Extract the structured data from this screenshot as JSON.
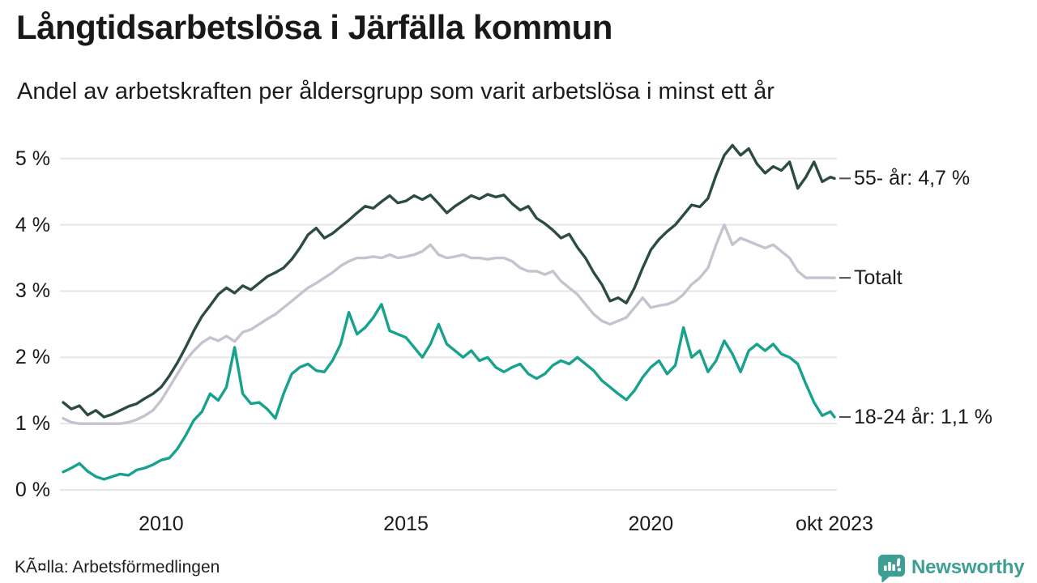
{
  "chart_data": {
    "type": "line",
    "title": "Långtidsarbetslösa i Järfälla kommun",
    "subtitle": "Andel av arbetskraften per åldersgrupp som varit arbetslösa i minst ett år",
    "x_range": [
      "jan 2008",
      "okt 2023"
    ],
    "x_unit": "month",
    "total_months": 189,
    "step_months": 2,
    "ylim": [
      0,
      5
    ],
    "grid": "horizontal",
    "legend_position": "right-edge-labels",
    "yticks": [
      {
        "value": 0,
        "label": "0 %"
      },
      {
        "value": 1,
        "label": "1 %"
      },
      {
        "value": 2,
        "label": "2 %"
      },
      {
        "value": 3,
        "label": "3 %"
      },
      {
        "value": 4,
        "label": "4 %"
      },
      {
        "value": 5,
        "label": "5 %"
      }
    ],
    "xticks": [
      {
        "month": 24,
        "label": "2010"
      },
      {
        "month": 84,
        "label": "2015"
      },
      {
        "month": 144,
        "label": "2020"
      },
      {
        "month": 189,
        "label": "okt 2023"
      }
    ],
    "series": [
      {
        "name": "Totalt",
        "end_label": "Totalt",
        "end_value": 3.2,
        "color_key": "gray",
        "values": [
          1.08,
          1.02,
          1.0,
          1.0,
          1.0,
          1.0,
          1.0,
          1.0,
          1.02,
          1.06,
          1.12,
          1.2,
          1.35,
          1.55,
          1.75,
          1.95,
          2.1,
          2.22,
          2.3,
          2.25,
          2.32,
          2.24,
          2.38,
          2.42,
          2.5,
          2.58,
          2.65,
          2.75,
          2.85,
          2.95,
          3.05,
          3.12,
          3.2,
          3.28,
          3.38,
          3.45,
          3.5,
          3.5,
          3.52,
          3.5,
          3.55,
          3.5,
          3.52,
          3.55,
          3.6,
          3.7,
          3.55,
          3.5,
          3.52,
          3.55,
          3.5,
          3.5,
          3.48,
          3.5,
          3.5,
          3.45,
          3.35,
          3.3,
          3.3,
          3.25,
          3.3,
          3.15,
          3.05,
          2.95,
          2.8,
          2.65,
          2.55,
          2.5,
          2.55,
          2.6,
          2.75,
          2.9,
          2.75,
          2.78,
          2.8,
          2.85,
          2.95,
          3.1,
          3.2,
          3.35,
          3.7,
          4.0,
          3.7,
          3.8,
          3.75,
          3.7,
          3.65,
          3.7,
          3.6,
          3.5,
          3.3,
          3.2,
          3.2,
          3.2,
          3.2,
          3.2
        ]
      },
      {
        "name": "55- år",
        "end_label": "55- år: 4,7 %",
        "end_value": 4.7,
        "color_key": "green",
        "values": [
          1.32,
          1.22,
          1.27,
          1.13,
          1.2,
          1.1,
          1.14,
          1.2,
          1.26,
          1.3,
          1.38,
          1.45,
          1.55,
          1.72,
          1.92,
          2.15,
          2.4,
          2.62,
          2.78,
          2.95,
          3.05,
          2.97,
          3.08,
          3.02,
          3.12,
          3.22,
          3.28,
          3.35,
          3.48,
          3.65,
          3.85,
          3.95,
          3.8,
          3.87,
          3.97,
          4.07,
          4.18,
          4.28,
          4.25,
          4.35,
          4.44,
          4.33,
          4.36,
          4.44,
          4.38,
          4.45,
          4.32,
          4.18,
          4.28,
          4.36,
          4.44,
          4.39,
          4.46,
          4.42,
          4.45,
          4.32,
          4.22,
          4.28,
          4.1,
          4.02,
          3.92,
          3.8,
          3.86,
          3.66,
          3.5,
          3.28,
          3.1,
          2.85,
          2.9,
          2.82,
          3.05,
          3.35,
          3.62,
          3.78,
          3.9,
          4.0,
          4.15,
          4.3,
          4.27,
          4.4,
          4.75,
          5.05,
          5.2,
          5.05,
          5.15,
          4.92,
          4.78,
          4.88,
          4.82,
          4.95,
          4.55,
          4.72,
          4.95,
          4.65,
          4.72,
          4.7
        ]
      },
      {
        "name": "18-24 år",
        "end_label": "18-24 år: 1,1 %",
        "end_value": 1.1,
        "color_key": "teal",
        "values": [
          0.27,
          0.33,
          0.4,
          0.28,
          0.2,
          0.16,
          0.2,
          0.24,
          0.22,
          0.3,
          0.33,
          0.38,
          0.45,
          0.48,
          0.62,
          0.82,
          1.05,
          1.18,
          1.45,
          1.35,
          1.55,
          2.15,
          1.45,
          1.3,
          1.32,
          1.22,
          1.08,
          1.45,
          1.75,
          1.85,
          1.9,
          1.8,
          1.78,
          1.95,
          2.2,
          2.68,
          2.35,
          2.45,
          2.6,
          2.8,
          2.4,
          2.35,
          2.3,
          2.15,
          2.0,
          2.2,
          2.5,
          2.2,
          2.1,
          2.0,
          2.1,
          1.95,
          2.0,
          1.85,
          1.78,
          1.85,
          1.9,
          1.75,
          1.68,
          1.75,
          1.88,
          1.95,
          1.9,
          2.0,
          1.9,
          1.8,
          1.65,
          1.55,
          1.45,
          1.36,
          1.5,
          1.7,
          1.85,
          1.95,
          1.75,
          1.88,
          2.45,
          2.0,
          2.1,
          1.78,
          1.95,
          2.25,
          2.05,
          1.78,
          2.1,
          2.2,
          2.1,
          2.2,
          2.05,
          2.0,
          1.9,
          1.6,
          1.32,
          1.12,
          1.18,
          1.1
        ]
      }
    ]
  },
  "colors": {
    "green": "#2b4c40",
    "gray": "#c4c3cf",
    "teal": "#18a28e",
    "grid": "#e6e6e6",
    "connector": "#4d4d4d",
    "brand": "#3f9e93",
    "brand_icon_fg": "#ffffff"
  },
  "footer": {
    "source": "KÃ¤lla: Arbetsförmedlingen",
    "brand": "Newsworthy"
  }
}
